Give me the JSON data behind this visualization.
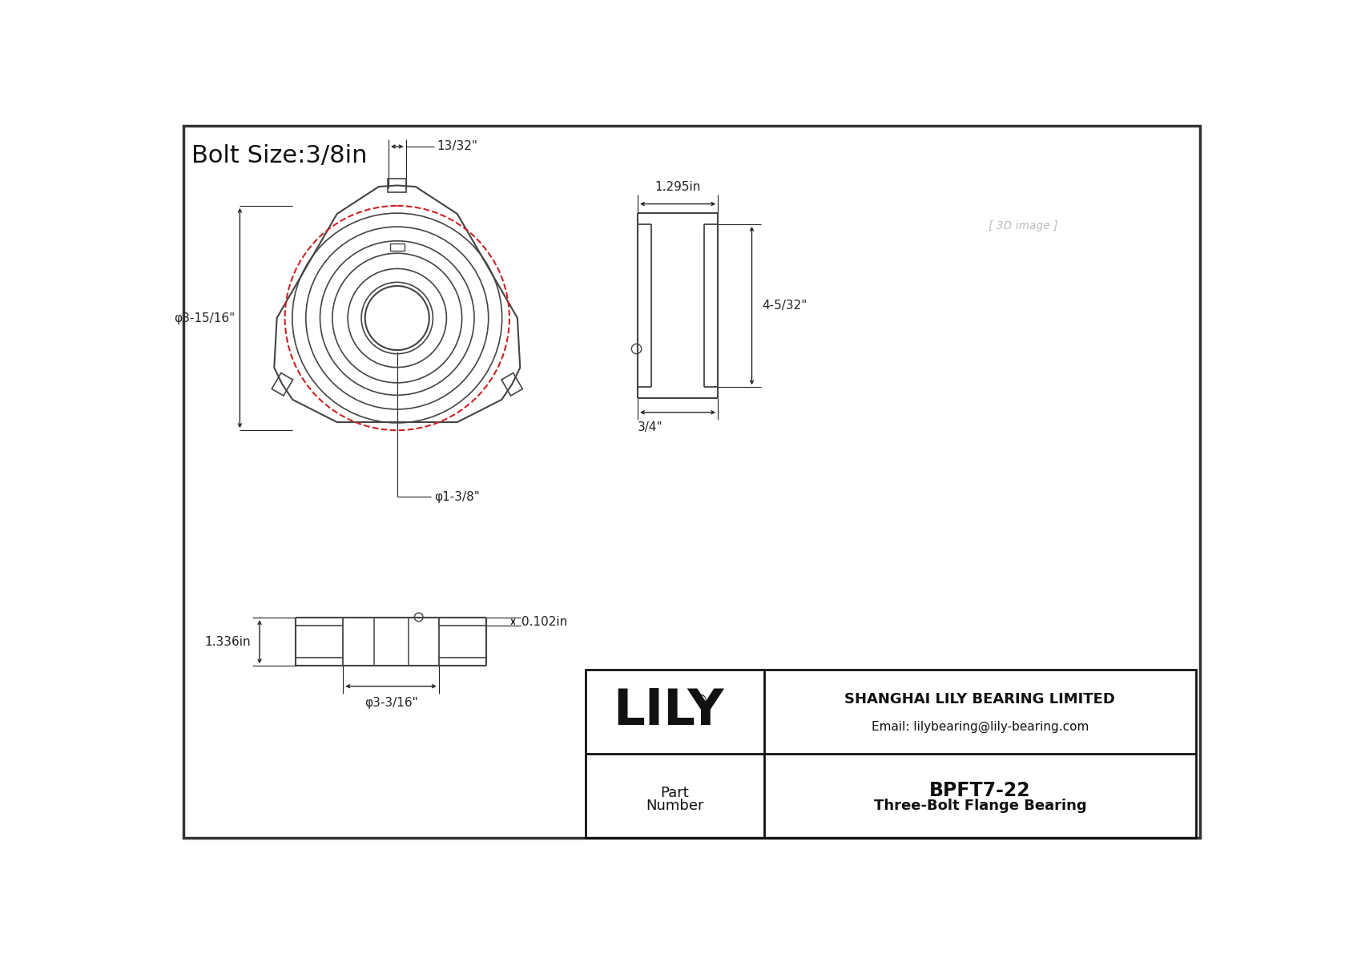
{
  "title": "Bolt Size:3/8in",
  "part_number": "BPFT7-22",
  "part_type": "Three-Bolt Flange Bearing",
  "company": "SHANGHAI LILY BEARING LIMITED",
  "email": "Email: lilybearing@lily-bearing.com",
  "bg_color": "#ffffff",
  "line_color": "#444444",
  "dim_color": "#222222",
  "red_color": "#cc2222",
  "dims": {
    "top_slot": "13/32\"",
    "od": "φ3-15/16\"",
    "bore": "φ1-3/8\"",
    "side_width": "1.295in",
    "side_height": "4-5/32\"",
    "side_bottom": "3/4\"",
    "front_flange": "0.102in",
    "front_total": "1.336in",
    "front_od": "φ3-3/16\""
  }
}
